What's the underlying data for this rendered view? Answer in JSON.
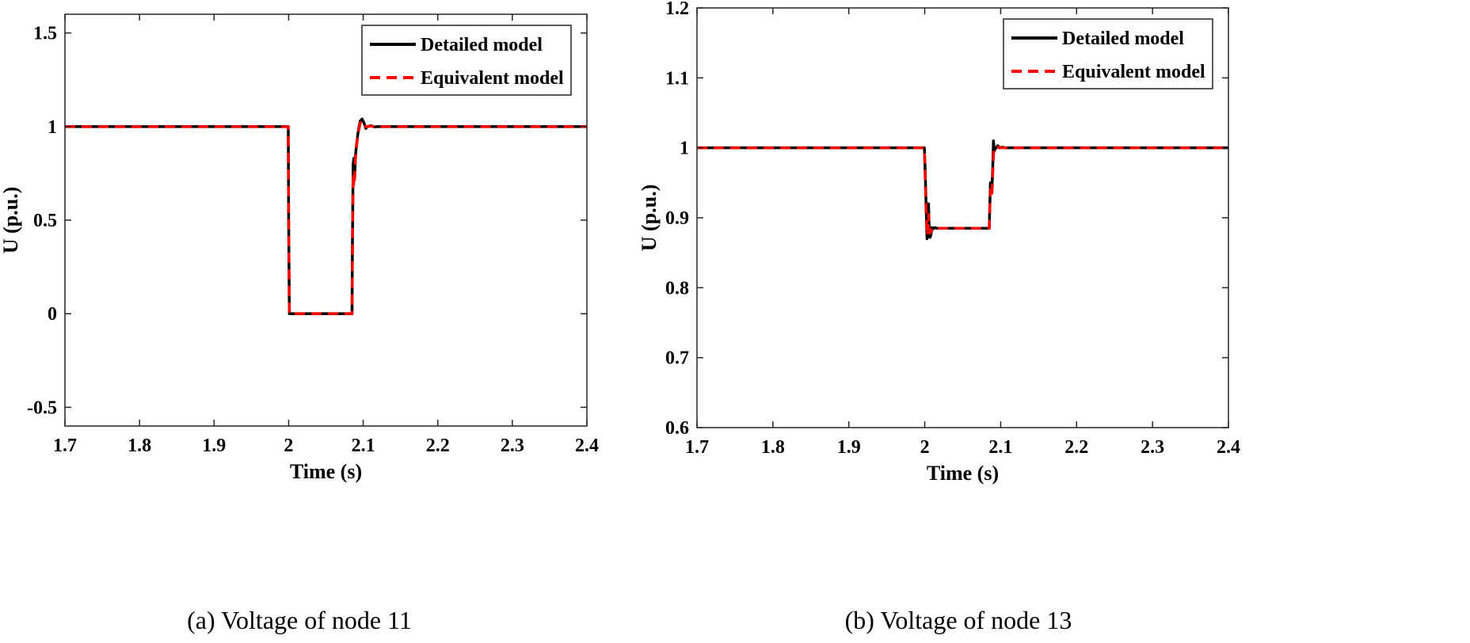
{
  "chart_data": [
    {
      "type": "line",
      "caption": "(a) Voltage of node 11",
      "xlabel": "Time (s)",
      "ylabel": "U (p.u.)",
      "xlim": [
        1.7,
        2.4
      ],
      "ylim": [
        -0.6,
        1.6
      ],
      "xticks": [
        1.7,
        1.8,
        1.9,
        2.0,
        2.1,
        2.2,
        2.3,
        2.4
      ],
      "xtick_labels": [
        "1.7",
        "1.8",
        "1.9",
        "2",
        "2.1",
        "2.2",
        "2.3",
        "2.4"
      ],
      "yticks": [
        -0.5,
        0,
        0.5,
        1,
        1.5
      ],
      "ytick_labels": [
        "-0.5",
        "0",
        "0.5",
        "1",
        "1.5"
      ],
      "legend_position": "top-right",
      "series": [
        {
          "name": "Detailed model",
          "color": "#000000",
          "style": "solid",
          "x": [
            1.7,
            1.9995,
            2.0,
            2.001,
            2.085,
            2.0855,
            2.0865,
            2.0875,
            2.0885,
            2.0895,
            2.091,
            2.0925,
            2.094,
            2.096,
            2.0985,
            2.101,
            2.1035,
            2.106,
            2.11,
            2.115,
            2.12,
            2.4
          ],
          "y": [
            1.0,
            1.0,
            0.5,
            0.0,
            0.0,
            0.35,
            0.8,
            0.83,
            0.72,
            0.84,
            0.9,
            0.95,
            0.99,
            1.03,
            1.04,
            1.02,
            0.99,
            1.0,
            1.005,
            0.998,
            1.0,
            1.0
          ]
        },
        {
          "name": "Equivalent model",
          "color": "#ff0000",
          "style": "dashed",
          "x": [
            1.7,
            1.9995,
            2.0,
            2.001,
            2.085,
            2.0855,
            2.0865,
            2.0875,
            2.0885,
            2.0895,
            2.091,
            2.0925,
            2.094,
            2.096,
            2.0985,
            2.101,
            2.1035,
            2.106,
            2.11,
            2.115,
            2.12,
            2.4
          ],
          "y": [
            1.0,
            1.0,
            0.5,
            0.0,
            0.0,
            0.3,
            0.75,
            0.68,
            0.73,
            0.82,
            0.9,
            0.94,
            0.98,
            1.02,
            1.03,
            1.01,
            1.0,
            1.0,
            1.003,
            0.999,
            1.0,
            1.0
          ]
        }
      ]
    },
    {
      "type": "line",
      "caption": "(b) Voltage of node 13",
      "xlabel": "Time (s)",
      "ylabel": "U (p.u.)",
      "xlim": [
        1.7,
        2.4
      ],
      "ylim": [
        0.6,
        1.2
      ],
      "xticks": [
        1.7,
        1.8,
        1.9,
        2.0,
        2.1,
        2.2,
        2.3,
        2.4
      ],
      "xtick_labels": [
        "1.7",
        "1.8",
        "1.9",
        "2",
        "2.1",
        "2.2",
        "2.3",
        "2.4"
      ],
      "yticks": [
        0.6,
        0.7,
        0.8,
        0.9,
        1.0,
        1.1,
        1.2
      ],
      "ytick_labels": [
        "0.6",
        "0.7",
        "0.8",
        "0.9",
        "1",
        "1.1",
        "1.2"
      ],
      "legend_position": "top-right",
      "series": [
        {
          "name": "Detailed model",
          "color": "#000000",
          "style": "solid",
          "x": [
            1.7,
            1.9995,
            2.0005,
            2.002,
            2.003,
            2.004,
            2.005,
            2.006,
            2.007,
            2.008,
            2.0095,
            2.011,
            2.013,
            2.016,
            2.02,
            2.085,
            2.0855,
            2.0865,
            2.0875,
            2.0885,
            2.0895,
            2.0905,
            2.0915,
            2.0925,
            2.094,
            2.096,
            2.099,
            2.102,
            2.106,
            2.4
          ],
          "y": [
            1.0,
            1.0,
            0.97,
            0.91,
            0.87,
            0.875,
            0.92,
            0.88,
            0.872,
            0.875,
            0.886,
            0.884,
            0.886,
            0.885,
            0.885,
            0.885,
            0.91,
            0.95,
            0.935,
            0.94,
            0.97,
            1.01,
            0.995,
            0.998,
            1.0,
            1.003,
            1.0,
            1.001,
            1.0,
            1.0
          ]
        },
        {
          "name": "Equivalent model",
          "color": "#ff0000",
          "style": "dashed",
          "x": [
            1.7,
            1.9995,
            2.0005,
            2.002,
            2.003,
            2.004,
            2.005,
            2.006,
            2.007,
            2.008,
            2.0095,
            2.011,
            2.013,
            2.016,
            2.02,
            2.085,
            2.0855,
            2.0865,
            2.0875,
            2.0885,
            2.0895,
            2.0905,
            2.0915,
            2.0925,
            2.094,
            2.096,
            2.099,
            2.102,
            2.106,
            2.4
          ],
          "y": [
            1.0,
            1.0,
            0.96,
            0.9,
            0.875,
            0.88,
            0.905,
            0.882,
            0.878,
            0.88,
            0.885,
            0.885,
            0.885,
            0.885,
            0.885,
            0.885,
            0.905,
            0.94,
            0.93,
            0.935,
            0.96,
            0.99,
            1.0,
            0.999,
            1.0,
            1.001,
            1.0,
            1.0,
            1.0,
            1.0
          ]
        }
      ]
    }
  ]
}
